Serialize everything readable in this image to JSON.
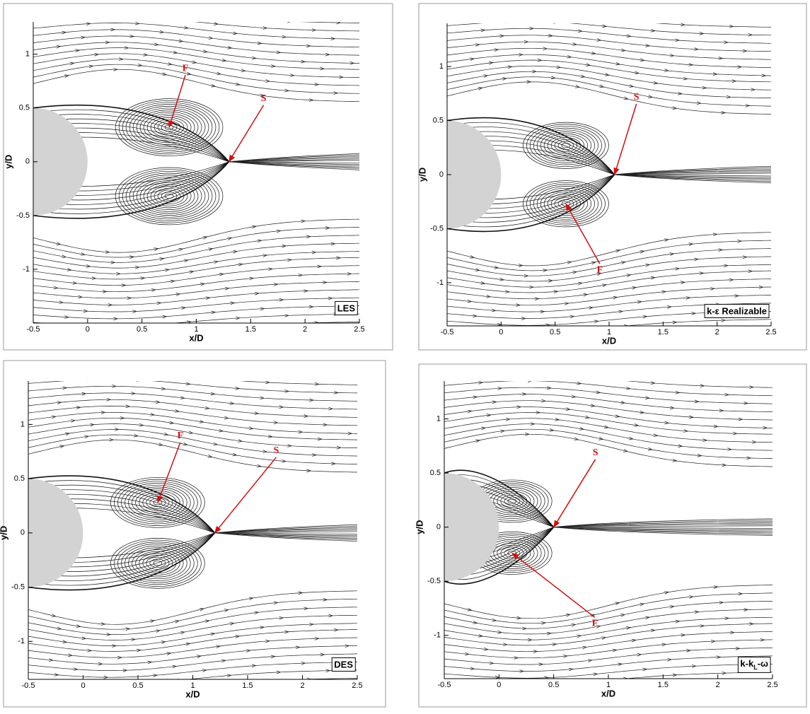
{
  "chart_data": [
    {
      "type": "streamline",
      "label": "LES",
      "xlabel": "x/D",
      "ylabel": "y/D",
      "xlim": [
        -0.5,
        2.5
      ],
      "ylim": [
        -1.5,
        1.3
      ],
      "xticks": [
        -0.5,
        0,
        0.5,
        1,
        1.5,
        2,
        2.5
      ],
      "yticks": [
        -1,
        -0.5,
        0,
        0.5,
        1
      ],
      "annotations": [
        {
          "text": "F",
          "x": 0.75,
          "y": 0.32
        },
        {
          "text": "S",
          "x": 1.3,
          "y": 0
        }
      ]
    },
    {
      "type": "streamline",
      "label": "k-ε Realizable",
      "xlabel": "x/D",
      "ylabel": "y/D",
      "xlim": [
        -0.5,
        2.5
      ],
      "ylim": [
        -1.4,
        1.4
      ],
      "xticks": [
        -0.5,
        0,
        0.5,
        1,
        1.5,
        2,
        2.5
      ],
      "yticks": [
        -1,
        -0.5,
        0,
        0.5,
        1
      ],
      "annotations": [
        {
          "text": "F",
          "x": 0.6,
          "y": -0.27
        },
        {
          "text": "S",
          "x": 1.05,
          "y": 0
        }
      ]
    },
    {
      "type": "streamline",
      "label": "DES",
      "xlabel": "x/D",
      "ylabel": "y/D",
      "xlim": [
        -0.5,
        2.5
      ],
      "ylim": [
        -1.35,
        1.4
      ],
      "xticks": [
        -0.5,
        0,
        0.5,
        1,
        1.5,
        2,
        2.5
      ],
      "yticks": [
        -1,
        -0.5,
        0,
        0.5,
        1
      ],
      "annotations": [
        {
          "text": "F",
          "x": 0.68,
          "y": 0.28
        },
        {
          "text": "S",
          "x": 1.2,
          "y": 0
        }
      ]
    },
    {
      "type": "streamline",
      "label": [
        "k-k",
        "L",
        "-ω"
      ],
      "xlabel": "x/D",
      "ylabel": "y/D",
      "xlim": [
        -0.5,
        2.5
      ],
      "ylim": [
        -1.4,
        1.35
      ],
      "xticks": [
        -0.5,
        0,
        0.5,
        1,
        1.5,
        2,
        2.5
      ],
      "yticks": [
        -1,
        -0.5,
        0,
        0.5,
        1
      ],
      "annotations": [
        {
          "text": "F",
          "x": 0.12,
          "y": -0.24
        },
        {
          "text": "S",
          "x": 0.5,
          "y": 0
        }
      ]
    }
  ]
}
